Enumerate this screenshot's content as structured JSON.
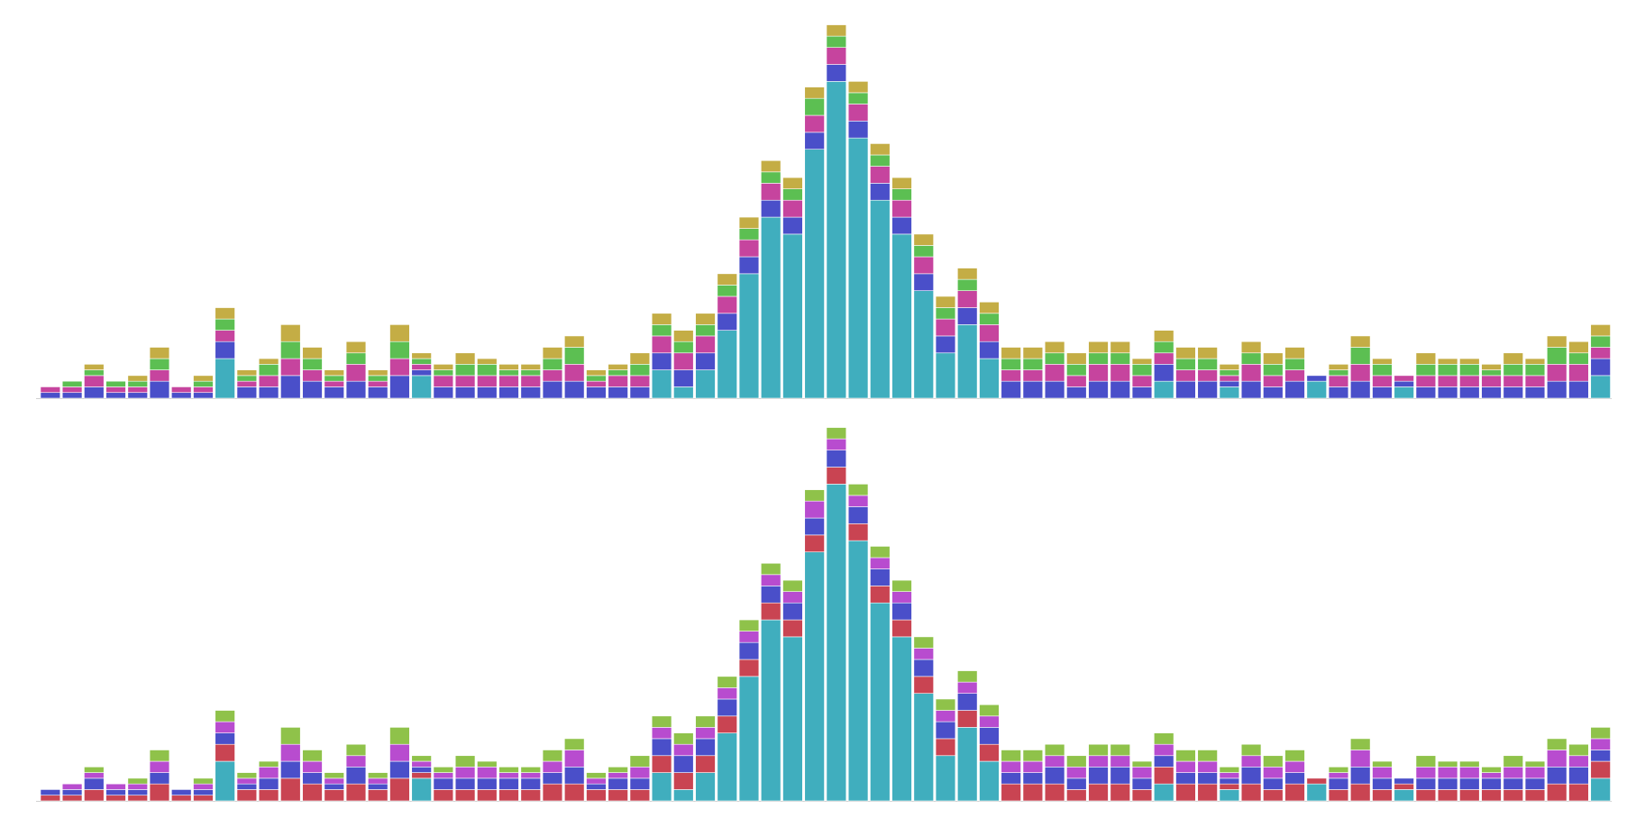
{
  "chart_data": [
    {
      "type": "bar",
      "stacked": true,
      "ylim": [
        0,
        68
      ],
      "series": [
        {
          "color": "#40aebe",
          "values": [
            0,
            0,
            0,
            0,
            0,
            0,
            0,
            0,
            7,
            0,
            0,
            0,
            0,
            0,
            0,
            0,
            0,
            4,
            0,
            0,
            0,
            0,
            0,
            0,
            0,
            0,
            0,
            0,
            5,
            2,
            5,
            12,
            22,
            32,
            29,
            44,
            56,
            46,
            35,
            29,
            19,
            8,
            13,
            7,
            0,
            0,
            0,
            0,
            0,
            0,
            0,
            3,
            0,
            0,
            2,
            0,
            0,
            0,
            3,
            0,
            0,
            0,
            2,
            0,
            0,
            0,
            0,
            0,
            0,
            0,
            0,
            4
          ]
        },
        {
          "color": "#4a4fc9",
          "values": [
            1,
            1,
            2,
            1,
            1,
            3,
            1,
            1,
            3,
            2,
            2,
            4,
            3,
            2,
            3,
            2,
            4,
            1,
            2,
            2,
            2,
            2,
            2,
            3,
            3,
            2,
            2,
            2,
            3,
            3,
            3,
            3,
            3,
            3,
            3,
            3,
            3,
            3,
            3,
            3,
            3,
            3,
            3,
            3,
            3,
            3,
            3,
            2,
            3,
            3,
            2,
            3,
            3,
            3,
            1,
            3,
            2,
            3,
            1,
            2,
            3,
            2,
            1,
            2,
            2,
            2,
            2,
            2,
            2,
            3,
            3,
            3
          ]
        },
        {
          "color": "#c6449e",
          "values": [
            1,
            1,
            2,
            1,
            1,
            2,
            1,
            1,
            2,
            1,
            2,
            3,
            2,
            1,
            3,
            1,
            3,
            1,
            2,
            2,
            2,
            2,
            2,
            2,
            3,
            1,
            2,
            2,
            3,
            3,
            3,
            3,
            3,
            3,
            3,
            3,
            3,
            3,
            3,
            3,
            3,
            3,
            3,
            3,
            2,
            2,
            3,
            2,
            3,
            3,
            2,
            2,
            2,
            2,
            1,
            3,
            2,
            2,
            0,
            2,
            3,
            2,
            1,
            2,
            2,
            2,
            2,
            2,
            2,
            3,
            3,
            2
          ]
        },
        {
          "color": "#5cbf52",
          "values": [
            0,
            1,
            1,
            1,
            1,
            2,
            0,
            1,
            2,
            1,
            2,
            3,
            2,
            1,
            2,
            1,
            3,
            1,
            1,
            2,
            2,
            1,
            1,
            2,
            3,
            1,
            1,
            2,
            2,
            2,
            2,
            2,
            2,
            2,
            2,
            3,
            2,
            2,
            2,
            2,
            2,
            2,
            2,
            2,
            2,
            2,
            2,
            2,
            2,
            2,
            2,
            2,
            2,
            2,
            1,
            2,
            2,
            2,
            0,
            1,
            3,
            2,
            0,
            2,
            2,
            2,
            1,
            2,
            2,
            3,
            2,
            2
          ]
        },
        {
          "color": "#c4ad45",
          "values": [
            0,
            0,
            1,
            0,
            1,
            2,
            0,
            1,
            2,
            1,
            1,
            3,
            2,
            1,
            2,
            1,
            3,
            1,
            1,
            2,
            1,
            1,
            1,
            2,
            2,
            1,
            1,
            2,
            2,
            2,
            2,
            2,
            2,
            2,
            2,
            2,
            2,
            2,
            2,
            2,
            2,
            2,
            2,
            2,
            2,
            2,
            2,
            2,
            2,
            2,
            1,
            2,
            2,
            2,
            1,
            2,
            2,
            2,
            0,
            1,
            2,
            1,
            0,
            2,
            1,
            1,
            1,
            2,
            1,
            2,
            2,
            2
          ]
        }
      ]
    },
    {
      "type": "bar",
      "stacked": true,
      "ylim": [
        0,
        68
      ],
      "series": [
        {
          "color": "#40aebe",
          "values": [
            0,
            0,
            0,
            0,
            0,
            0,
            0,
            0,
            7,
            0,
            0,
            0,
            0,
            0,
            0,
            0,
            0,
            4,
            0,
            0,
            0,
            0,
            0,
            0,
            0,
            0,
            0,
            0,
            5,
            2,
            5,
            12,
            22,
            32,
            29,
            44,
            56,
            46,
            35,
            29,
            19,
            8,
            13,
            7,
            0,
            0,
            0,
            0,
            0,
            0,
            0,
            3,
            0,
            0,
            2,
            0,
            0,
            0,
            3,
            0,
            0,
            0,
            2,
            0,
            0,
            0,
            0,
            0,
            0,
            0,
            0,
            4
          ]
        },
        {
          "color": "#c94452",
          "values": [
            1,
            1,
            2,
            1,
            1,
            3,
            1,
            1,
            3,
            2,
            2,
            4,
            3,
            2,
            3,
            2,
            4,
            1,
            2,
            2,
            2,
            2,
            2,
            3,
            3,
            2,
            2,
            2,
            3,
            3,
            3,
            3,
            3,
            3,
            3,
            3,
            3,
            3,
            3,
            3,
            3,
            3,
            3,
            3,
            3,
            3,
            3,
            2,
            3,
            3,
            2,
            3,
            3,
            3,
            1,
            3,
            2,
            3,
            1,
            2,
            3,
            2,
            1,
            2,
            2,
            2,
            2,
            2,
            2,
            3,
            3,
            3
          ]
        },
        {
          "color": "#4a4fc9",
          "values": [
            1,
            1,
            2,
            1,
            1,
            2,
            1,
            1,
            2,
            1,
            2,
            3,
            2,
            1,
            3,
            1,
            3,
            1,
            2,
            2,
            2,
            2,
            2,
            2,
            3,
            1,
            2,
            2,
            3,
            3,
            3,
            3,
            3,
            3,
            3,
            3,
            3,
            3,
            3,
            3,
            3,
            3,
            3,
            3,
            2,
            2,
            3,
            2,
            3,
            3,
            2,
            2,
            2,
            2,
            1,
            3,
            2,
            2,
            0,
            2,
            3,
            2,
            1,
            2,
            2,
            2,
            2,
            2,
            2,
            3,
            3,
            2
          ]
        },
        {
          "color": "#b84ccf",
          "values": [
            0,
            1,
            1,
            1,
            1,
            2,
            0,
            1,
            2,
            1,
            2,
            3,
            2,
            1,
            2,
            1,
            3,
            1,
            1,
            2,
            2,
            1,
            1,
            2,
            3,
            1,
            1,
            2,
            2,
            2,
            2,
            2,
            2,
            2,
            2,
            3,
            2,
            2,
            2,
            2,
            2,
            2,
            2,
            2,
            2,
            2,
            2,
            2,
            2,
            2,
            2,
            2,
            2,
            2,
            1,
            2,
            2,
            2,
            0,
            1,
            3,
            2,
            0,
            2,
            2,
            2,
            1,
            2,
            2,
            3,
            2,
            2
          ]
        },
        {
          "color": "#8fc24a",
          "values": [
            0,
            0,
            1,
            0,
            1,
            2,
            0,
            1,
            2,
            1,
            1,
            3,
            2,
            1,
            2,
            1,
            3,
            1,
            1,
            2,
            1,
            1,
            1,
            2,
            2,
            1,
            1,
            2,
            2,
            2,
            2,
            2,
            2,
            2,
            2,
            2,
            2,
            2,
            2,
            2,
            2,
            2,
            2,
            2,
            2,
            2,
            2,
            2,
            2,
            2,
            1,
            2,
            2,
            2,
            1,
            2,
            2,
            2,
            0,
            1,
            2,
            1,
            0,
            2,
            1,
            1,
            1,
            2,
            1,
            2,
            2,
            2
          ]
        }
      ]
    }
  ]
}
